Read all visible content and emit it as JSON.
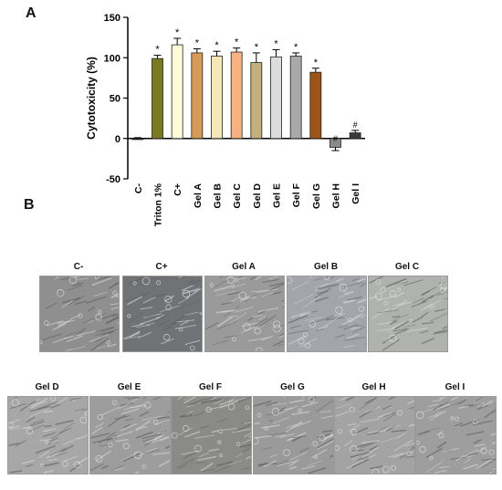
{
  "panel_a_label": "A",
  "panel_b_label": "B",
  "chart_data": {
    "type": "bar",
    "ylabel": "Cytotoxicity (%)",
    "ylim": [
      -50,
      150
    ],
    "yticks": [
      "-50",
      "0",
      "50",
      "100",
      "150"
    ],
    "yticks_values": [
      -50,
      0,
      50,
      100,
      150
    ],
    "categories": [
      "C-",
      "Triton 1%",
      "C+",
      "Gel A",
      "Gel B",
      "Gel C",
      "Gel D",
      "Gel E",
      "Gel F",
      "Gel G",
      "Gel H",
      "Gel I"
    ],
    "values": [
      0,
      99,
      116,
      106,
      102,
      107,
      94,
      101,
      102,
      82,
      -11,
      7
    ],
    "errors": [
      1,
      4,
      8,
      5,
      6,
      5,
      12,
      9,
      4,
      5,
      4,
      3
    ],
    "annotations": [
      "",
      "*",
      "*",
      "*",
      "*",
      "*",
      "*",
      "*",
      "*",
      "*",
      "#",
      "#"
    ],
    "colors": [
      "#222222",
      "#7a7a1e",
      "#fffbd8",
      "#d7995a",
      "#f6e7b8",
      "#f7b281",
      "#c4b07c",
      "#dcdcdc",
      "#a9a9a9",
      "#9c5417",
      "#8a8a8a",
      "#3b3b3b"
    ]
  },
  "micrographs_row1": [
    {
      "label": "C-",
      "tone": "#8f8f8f"
    },
    {
      "label": "C+",
      "tone": "#6f7376"
    },
    {
      "label": "Gel A",
      "tone": "#9a9a9a"
    },
    {
      "label": "Gel B",
      "tone": "#a2a6ab"
    },
    {
      "label": "Gel C",
      "tone": "#b0b2ad"
    }
  ],
  "micrographs_row2": [
    {
      "label": "Gel D",
      "tone": "#a7a7a7"
    },
    {
      "label": "Gel E",
      "tone": "#9d9d9d"
    },
    {
      "label": "Gel F",
      "tone": "#8a8a86"
    },
    {
      "label": "Gel G",
      "tone": "#9a9a9a"
    },
    {
      "label": "Gel H",
      "tone": "#a3a3a3"
    },
    {
      "label": "Gel I",
      "tone": "#9e9e9e"
    }
  ]
}
